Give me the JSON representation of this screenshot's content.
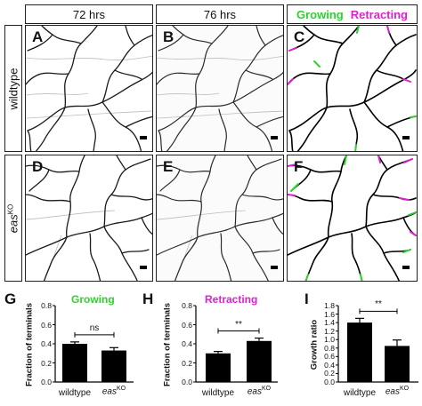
{
  "headers": {
    "col1": "72 hrs",
    "col2": "76 hrs",
    "growing": "Growing",
    "retracting": "Retracting"
  },
  "rows": {
    "row1": "wildtype",
    "row2_base": "eas",
    "row2_sup": "KO"
  },
  "panels": {
    "A": "A",
    "B": "B",
    "C": "C",
    "D": "D",
    "E": "E",
    "F": "F"
  },
  "colors": {
    "growing": "#2fd12f",
    "retracting": "#e020d0",
    "bar": "#000000"
  },
  "charts": {
    "G": {
      "letter": "G",
      "title": "Growing",
      "ylabel": "Fraction of terminals",
      "sig": "ns",
      "cat1": "wildtype",
      "cat2_base": "eas",
      "cat2_sup": "KO",
      "ticks": [
        "0.0",
        "0.2",
        "0.4",
        "0.6",
        "0.8"
      ]
    },
    "H": {
      "letter": "H",
      "title": "Retracting",
      "ylabel": "Fraction of terminals",
      "sig": "**",
      "cat1": "wildtype",
      "cat2_base": "eas",
      "cat2_sup": "KO",
      "ticks": [
        "0.0",
        "0.2",
        "0.4",
        "0.6",
        "0.8"
      ]
    },
    "I": {
      "letter": "I",
      "title": "",
      "ylabel": "Growth ratio",
      "sig": "**",
      "cat1": "wildtype",
      "cat2_base": "eas",
      "cat2_sup": "KO",
      "ticks": [
        "0.0",
        "0.2",
        "0.4",
        "0.6",
        "0.8",
        "1.0",
        "1.2",
        "1.4",
        "1.6",
        "1.8"
      ]
    }
  },
  "chart_data": [
    {
      "type": "bar",
      "title": "Growing",
      "ylabel": "Fraction of terminals",
      "categories": [
        "wildtype",
        "easKO"
      ],
      "values": [
        0.4,
        0.33
      ],
      "errors": [
        0.02,
        0.03
      ],
      "ylim": [
        0,
        0.8
      ],
      "significance": "ns"
    },
    {
      "type": "bar",
      "title": "Retracting",
      "ylabel": "Fraction of terminals",
      "categories": [
        "wildtype",
        "easKO"
      ],
      "values": [
        0.3,
        0.43
      ],
      "errors": [
        0.02,
        0.03
      ],
      "ylim": [
        0,
        0.8
      ],
      "significance": "**"
    },
    {
      "type": "bar",
      "title": "",
      "ylabel": "Growth ratio",
      "categories": [
        "wildtype",
        "easKO"
      ],
      "values": [
        1.4,
        0.85
      ],
      "errors": [
        0.1,
        0.14
      ],
      "ylim": [
        0,
        1.8
      ],
      "significance": "**"
    }
  ]
}
